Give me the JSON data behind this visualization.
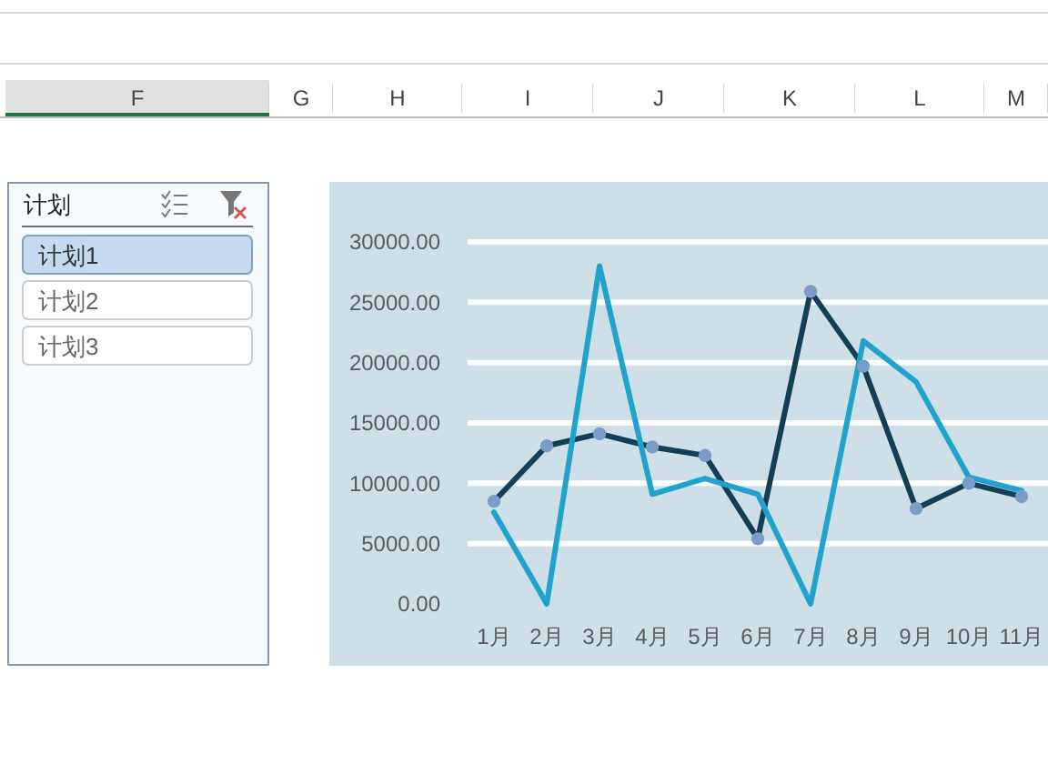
{
  "chart_data": [
    {
      "type": "other",
      "categories": [
        "F",
        "G",
        "H",
        "I",
        "J",
        "K",
        "L",
        "M"
      ],
      "colors": [
        "#e1e1e1",
        "#ffffff",
        "#ffffff",
        "#ffffff",
        "#ffffff",
        "#ffffff",
        "#ffffff",
        "#ffffff"
      ]
    },
    {
      "type": "other",
      "title": "计划",
      "categories": [
        "计划1",
        "计划2",
        "计划3"
      ],
      "colors": [
        "#c5d9f1",
        "#ffffff",
        "#ffffff"
      ]
    },
    {
      "type": "line",
      "categories": [
        "1月",
        "2月",
        "3月",
        "4月",
        "5月",
        "6月",
        "7月",
        "8月",
        "9月",
        "10月",
        "11月"
      ],
      "series": [
        {
          "color": "#123f56",
          "marker": "circle",
          "colors": [
            "#7b9cc6",
            "#7b9cc6",
            "#7b9cc6",
            "#7b9cc6",
            "#7b9cc6",
            "#7b9cc6",
            "#7b9cc6",
            "#7b9cc6",
            "#7b9cc6",
            "#7b9cc6",
            "#7b9cc6"
          ],
          "values": [
            8500,
            13100,
            14100,
            13000,
            12300,
            5400,
            25900,
            19700,
            7900,
            10000,
            8900
          ]
        },
        {
          "color": "#1fa3cd",
          "marker": "none",
          "values": [
            7600,
            0,
            28000,
            9100,
            10400,
            9100,
            0,
            21800,
            18400,
            10500,
            9400
          ]
        }
      ],
      "ylim": [
        0,
        30000
      ],
      "yticks": [
        {
          "value": 0,
          "label": "0.00"
        },
        {
          "value": 5000,
          "label": "5000.00"
        },
        {
          "value": 10000,
          "label": "10000.00"
        },
        {
          "value": 15000,
          "label": "15000.00"
        },
        {
          "value": 20000,
          "label": "20000.00"
        },
        {
          "value": 25000,
          "label": "25000.00"
        },
        {
          "value": 30000,
          "label": "30000.00"
        }
      ],
      "grid": "y"
    }
  ]
}
